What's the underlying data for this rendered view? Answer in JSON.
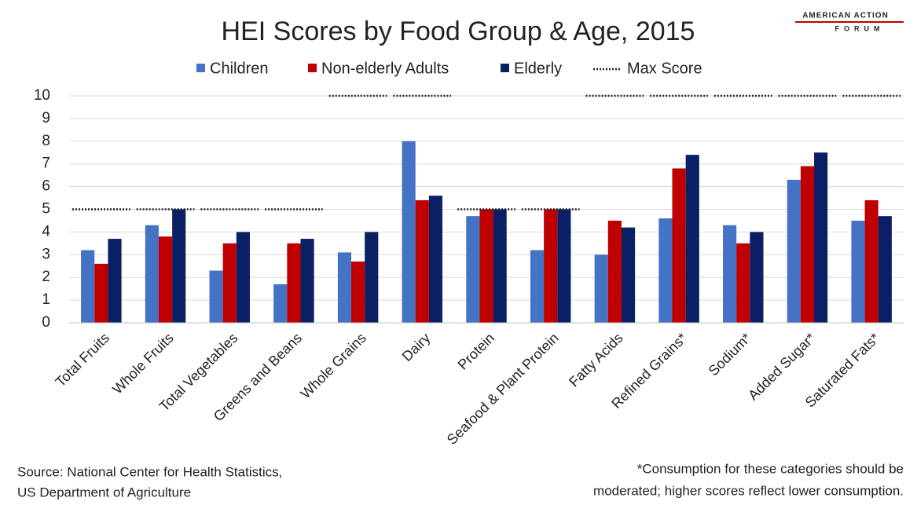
{
  "chart_data": {
    "type": "bar",
    "title": "HEI Scores by Food Group & Age, 2015",
    "logo": [
      "AMERICAN ACTION",
      "FORUM"
    ],
    "categories": [
      "Total Fruits",
      "Whole Fruits",
      "Total Vegetables",
      "Greens and Beans",
      "Whole Grains",
      "Dairy",
      "Protein",
      "Seafood & Plant Protein",
      "Fatty Acids",
      "Refined Grains*",
      "Sodium*",
      "Added Sugar*",
      "Saturated Fats*"
    ],
    "series": [
      {
        "name": "Children",
        "color": "#4472c4",
        "values": [
          3.2,
          4.3,
          2.3,
          1.7,
          3.1,
          8.0,
          4.7,
          3.2,
          3.0,
          4.6,
          4.3,
          6.3,
          4.5
        ]
      },
      {
        "name": "Non-elderly Adults",
        "color": "#c00000",
        "values": [
          2.6,
          3.8,
          3.5,
          3.5,
          2.7,
          5.4,
          5.0,
          5.0,
          4.5,
          6.8,
          3.5,
          6.9,
          5.4
        ]
      },
      {
        "name": "Elderly",
        "color": "#0b1f65",
        "values": [
          3.7,
          5.0,
          4.0,
          3.7,
          4.0,
          5.6,
          5.0,
          5.0,
          4.2,
          7.4,
          4.0,
          7.5,
          4.7
        ]
      }
    ],
    "max_score": {
      "name": "Max Score",
      "color": "#222222",
      "values": [
        5,
        5,
        5,
        5,
        10,
        10,
        5,
        5,
        10,
        10,
        10,
        10,
        10
      ]
    },
    "ylim": [
      0,
      10
    ],
    "yticks": [
      0,
      1,
      2,
      3,
      4,
      5,
      6,
      7,
      8,
      9,
      10
    ],
    "grid": true,
    "source": [
      "Source: National Center for Health Statistics,",
      "US Department of Agriculture"
    ],
    "footnote": [
      "*Consumption for these categories should be",
      "moderated; higher scores reflect lower consumption."
    ]
  }
}
